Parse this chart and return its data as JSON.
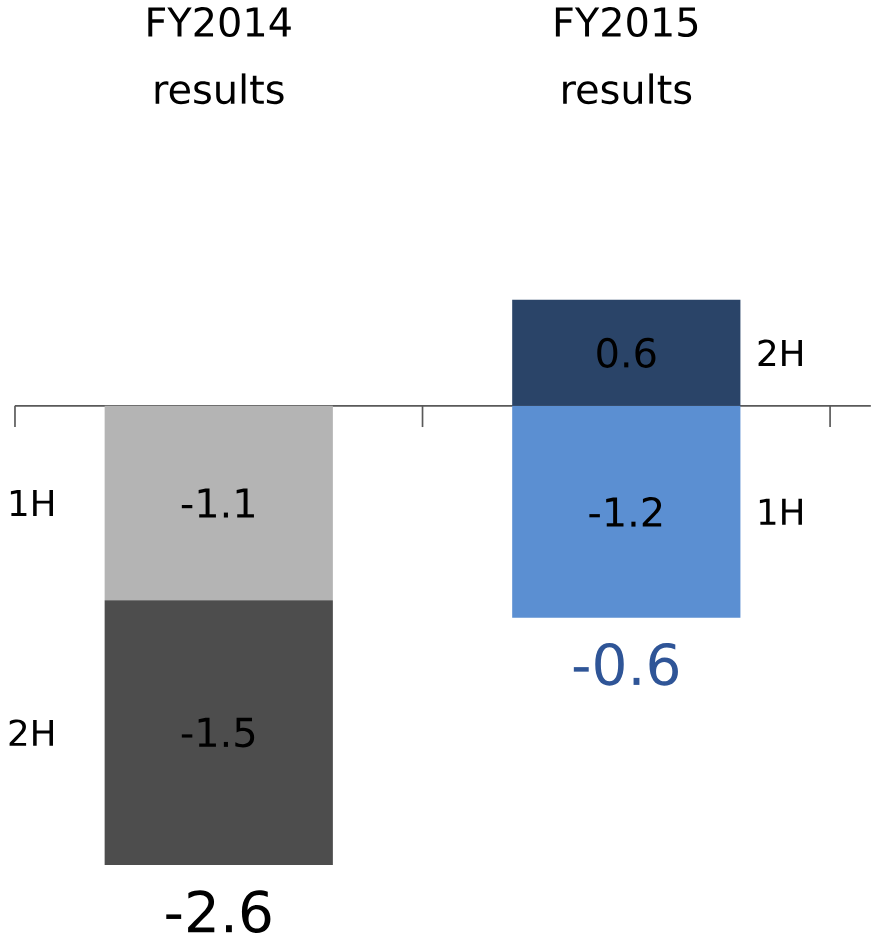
{
  "chart_data": {
    "type": "bar",
    "stacked": true,
    "data_labels": true,
    "categories": [
      "FY2014 results",
      "FY2015 results"
    ],
    "series": [
      {
        "name": "1H",
        "values": [
          -1.1,
          -1.2
        ],
        "colors": [
          "#b4b4b4",
          "#5b8fd2"
        ]
      },
      {
        "name": "2H",
        "values": [
          -1.5,
          0.6
        ],
        "colors": [
          "#4d4d4d",
          "#2a4468"
        ]
      }
    ],
    "totals": [
      "-2.6",
      "-0.6"
    ]
  }
}
